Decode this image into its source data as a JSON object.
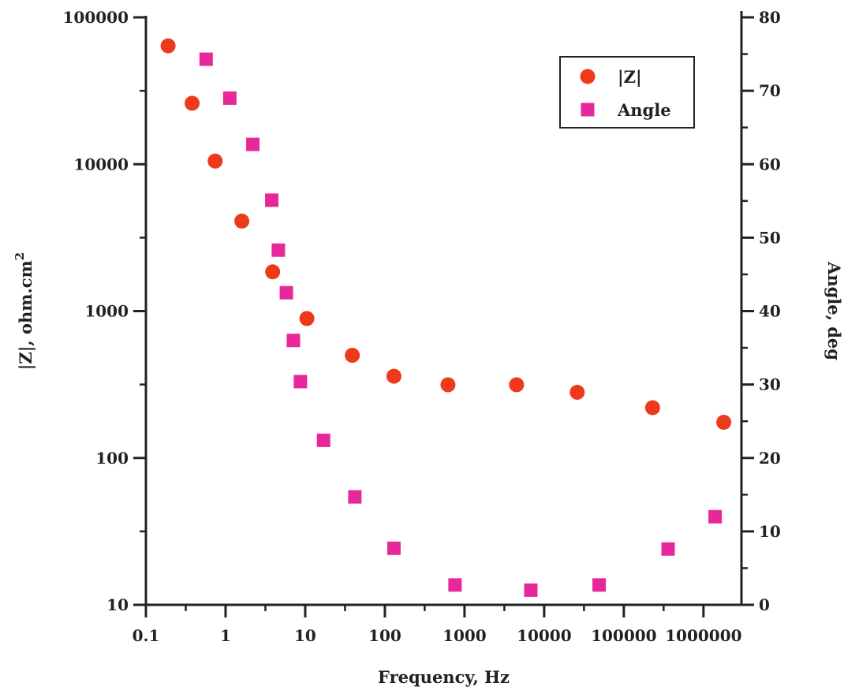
{
  "chart_data": {
    "type": "scatter",
    "xlabel": "Frequency, Hz",
    "ylabel": "|Z|, ohm.cm",
    "ylabel_superscript": "2",
    "y2label": "Angle, deg",
    "x_scale": "log",
    "y_scale": "log",
    "y2_scale": "linear",
    "xlim": [
      0.1,
      3000000
    ],
    "ylim": [
      10,
      100000
    ],
    "y2lim": [
      0,
      80
    ],
    "x_ticks": [
      {
        "value": 0.1,
        "label": "0.1"
      },
      {
        "value": 1,
        "label": "1"
      },
      {
        "value": 10,
        "label": "10"
      },
      {
        "value": 100,
        "label": "100"
      },
      {
        "value": 1000,
        "label": "1000"
      },
      {
        "value": 10000,
        "label": "10000"
      },
      {
        "value": 100000,
        "label": "100000"
      },
      {
        "value": 1000000,
        "label": "1000000"
      }
    ],
    "y_ticks": [
      {
        "value": 10,
        "label": "10"
      },
      {
        "value": 100,
        "label": "100"
      },
      {
        "value": 1000,
        "label": "1000"
      },
      {
        "value": 10000,
        "label": "10000"
      },
      {
        "value": 100000,
        "label": "100000"
      }
    ],
    "y2_ticks": [
      {
        "value": 0,
        "label": "0"
      },
      {
        "value": 10,
        "label": "10"
      },
      {
        "value": 20,
        "label": "20"
      },
      {
        "value": 30,
        "label": "30"
      },
      {
        "value": 40,
        "label": "40"
      },
      {
        "value": 50,
        "label": "50"
      },
      {
        "value": 60,
        "label": "60"
      },
      {
        "value": 70,
        "label": "70"
      },
      {
        "value": 80,
        "label": "80"
      }
    ],
    "grid": false,
    "legend_position": "top-right",
    "series": [
      {
        "name": "|Z|",
        "axis": "left",
        "marker": "circle",
        "color": "#ee3a1c",
        "points": [
          {
            "x": 0.19,
            "y": 64000
          },
          {
            "x": 0.38,
            "y": 26000
          },
          {
            "x": 0.74,
            "y": 10500
          },
          {
            "x": 1.6,
            "y": 4100
          },
          {
            "x": 3.9,
            "y": 1850
          },
          {
            "x": 10.5,
            "y": 890
          },
          {
            "x": 39,
            "y": 500
          },
          {
            "x": 130,
            "y": 360
          },
          {
            "x": 620,
            "y": 315
          },
          {
            "x": 4500,
            "y": 315
          },
          {
            "x": 26000,
            "y": 280
          },
          {
            "x": 230000,
            "y": 220
          },
          {
            "x": 1800000,
            "y": 175
          }
        ]
      },
      {
        "name": "Angle",
        "axis": "right",
        "marker": "square",
        "color": "#e8279a",
        "points": [
          {
            "x": 0.57,
            "y": 74.3
          },
          {
            "x": 1.13,
            "y": 69.0
          },
          {
            "x": 2.2,
            "y": 62.7
          },
          {
            "x": 3.8,
            "y": 55.1
          },
          {
            "x": 4.6,
            "y": 48.3
          },
          {
            "x": 5.8,
            "y": 42.5
          },
          {
            "x": 7.1,
            "y": 36.0
          },
          {
            "x": 8.7,
            "y": 30.4
          },
          {
            "x": 17,
            "y": 22.4
          },
          {
            "x": 42,
            "y": 14.7
          },
          {
            "x": 130,
            "y": 7.7
          },
          {
            "x": 760,
            "y": 2.7
          },
          {
            "x": 6800,
            "y": 2.0
          },
          {
            "x": 49000,
            "y": 2.7
          },
          {
            "x": 360000,
            "y": 7.6
          },
          {
            "x": 1400000,
            "y": 12.0
          }
        ]
      }
    ]
  }
}
